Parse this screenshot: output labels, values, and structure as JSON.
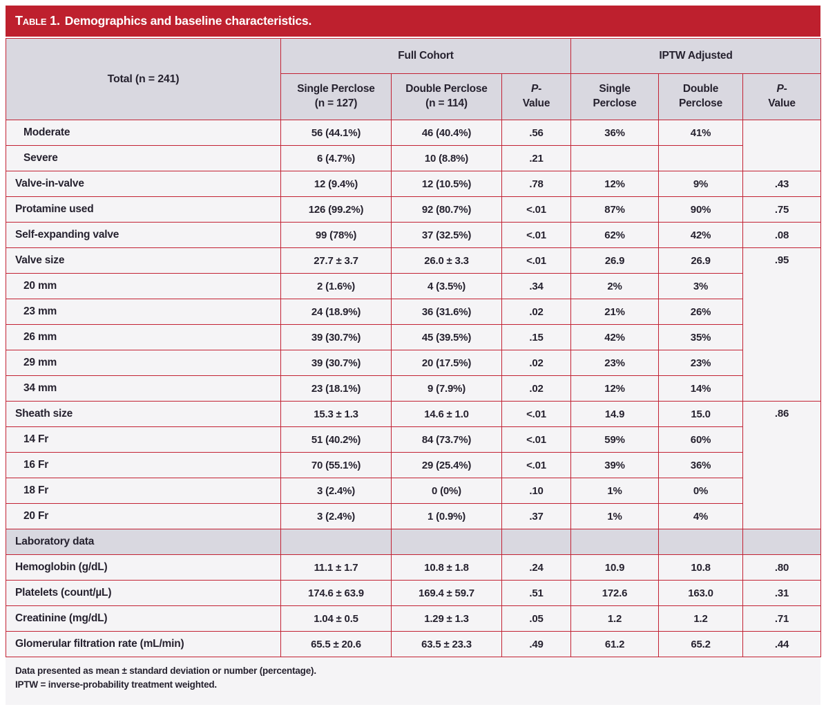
{
  "title": {
    "label": "Table 1.",
    "text": "Demographics and baseline characteristics."
  },
  "colors": {
    "accent_red": "#be202e",
    "border_red": "#c22133",
    "header_bg": "#d9d8e0",
    "row_bg": "#f5f4f6",
    "text": "#26222f"
  },
  "table": {
    "total_header": "Total (n = 241)",
    "group_headers": [
      "Full Cohort",
      "IPTW Adjusted"
    ],
    "sub_headers": [
      {
        "line1": "Single Perclose",
        "line2": "(n = 127)"
      },
      {
        "line1": "Double Perclose",
        "line2": "(n = 114)"
      },
      {
        "line1": "Single",
        "line2": "Perclose"
      },
      {
        "line1": "Double",
        "line2": "Perclose"
      }
    ],
    "p_header": {
      "symbol": "P",
      "dash": "-",
      "word": "Value"
    },
    "rows": [
      {
        "label": "Moderate",
        "indent": true,
        "cells": [
          "56 (44.1%)",
          "46 (40.4%)",
          ".56",
          "36%",
          "41%"
        ],
        "p2": "",
        "p2_rowspan": 2
      },
      {
        "label": "Severe",
        "indent": true,
        "cells": [
          "6 (4.7%)",
          "10 (8.8%)",
          ".21",
          "",
          ""
        ],
        "p2_skip": true
      },
      {
        "label": "Valve-in-valve",
        "cells": [
          "12 (9.4%)",
          "12 (10.5%)",
          ".78",
          "12%",
          "9%"
        ],
        "p2": ".43"
      },
      {
        "label": "Protamine used",
        "cells": [
          "126 (99.2%)",
          "92 (80.7%)",
          "<.01",
          "87%",
          "90%"
        ],
        "p2": ".75"
      },
      {
        "label": "Self-expanding valve",
        "cells": [
          "99 (78%)",
          "37 (32.5%)",
          "<.01",
          "62%",
          "42%"
        ],
        "p2": ".08"
      },
      {
        "label": "Valve size",
        "cells": [
          "27.7 ± 3.7",
          "26.0 ± 3.3",
          "<.01",
          "26.9",
          "26.9"
        ],
        "p2": ".95",
        "p2_rowspan": 6,
        "p2_top": true
      },
      {
        "label": "20 mm",
        "indent": true,
        "cells": [
          "2 (1.6%)",
          "4 (3.5%)",
          ".34",
          "2%",
          "3%"
        ],
        "p2_skip": true
      },
      {
        "label": "23 mm",
        "indent": true,
        "cells": [
          "24 (18.9%)",
          "36 (31.6%)",
          ".02",
          "21%",
          "26%"
        ],
        "p2_skip": true
      },
      {
        "label": "26 mm",
        "indent": true,
        "cells": [
          "39 (30.7%)",
          "45 (39.5%)",
          ".15",
          "42%",
          "35%"
        ],
        "p2_skip": true
      },
      {
        "label": "29 mm",
        "indent": true,
        "cells": [
          "39 (30.7%)",
          "20 (17.5%)",
          ".02",
          "23%",
          "23%"
        ],
        "p2_skip": true
      },
      {
        "label": "34 mm",
        "indent": true,
        "cells": [
          "23 (18.1%)",
          "9 (7.9%)",
          ".02",
          "12%",
          "14%"
        ],
        "p2_skip": true
      },
      {
        "label": "Sheath size",
        "cells": [
          "15.3 ± 1.3",
          "14.6 ± 1.0",
          "<.01",
          "14.9",
          "15.0"
        ],
        "p2": ".86",
        "p2_rowspan": 5,
        "p2_top": true
      },
      {
        "label": "14 Fr",
        "indent": true,
        "cells": [
          "51 (40.2%)",
          "84 (73.7%)",
          "<.01",
          "59%",
          "60%"
        ],
        "p2_skip": true
      },
      {
        "label": "16 Fr",
        "indent": true,
        "cells": [
          "70 (55.1%)",
          "29 (25.4%)",
          "<.01",
          "39%",
          "36%"
        ],
        "p2_skip": true
      },
      {
        "label": "18 Fr",
        "indent": true,
        "cells": [
          "3 (2.4%)",
          "0 (0%)",
          ".10",
          "1%",
          "0%"
        ],
        "p2_skip": true
      },
      {
        "label": "20 Fr",
        "indent": true,
        "cells": [
          "3 (2.4%)",
          "1 (0.9%)",
          ".37",
          "1%",
          "4%"
        ],
        "p2_skip": true
      },
      {
        "label": "Laboratory data",
        "section": true,
        "cells": [
          "",
          "",
          "",
          "",
          ""
        ],
        "p2": ""
      },
      {
        "label": "Hemoglobin (g/dL)",
        "cells": [
          "11.1 ± 1.7",
          "10.8 ± 1.8",
          ".24",
          "10.9",
          "10.8"
        ],
        "p2": ".80"
      },
      {
        "label": "Platelets (count/µL)",
        "cells": [
          "174.6 ± 63.9",
          "169.4 ± 59.7",
          ".51",
          "172.6",
          "163.0"
        ],
        "p2": ".31"
      },
      {
        "label": "Creatinine (mg/dL)",
        "cells": [
          "1.04 ± 0.5",
          "1.29 ± 1.3",
          ".05",
          "1.2",
          "1.2"
        ],
        "p2": ".71"
      },
      {
        "label": "Glomerular filtration rate (mL/min)",
        "cells": [
          "65.5 ± 20.6",
          "63.5 ± 23.3",
          ".49",
          "61.2",
          "65.2"
        ],
        "p2": ".44"
      }
    ]
  },
  "footnotes": [
    "Data presented as mean ± standard deviation or number (percentage).",
    "IPTW = inverse-probability treatment weighted."
  ]
}
